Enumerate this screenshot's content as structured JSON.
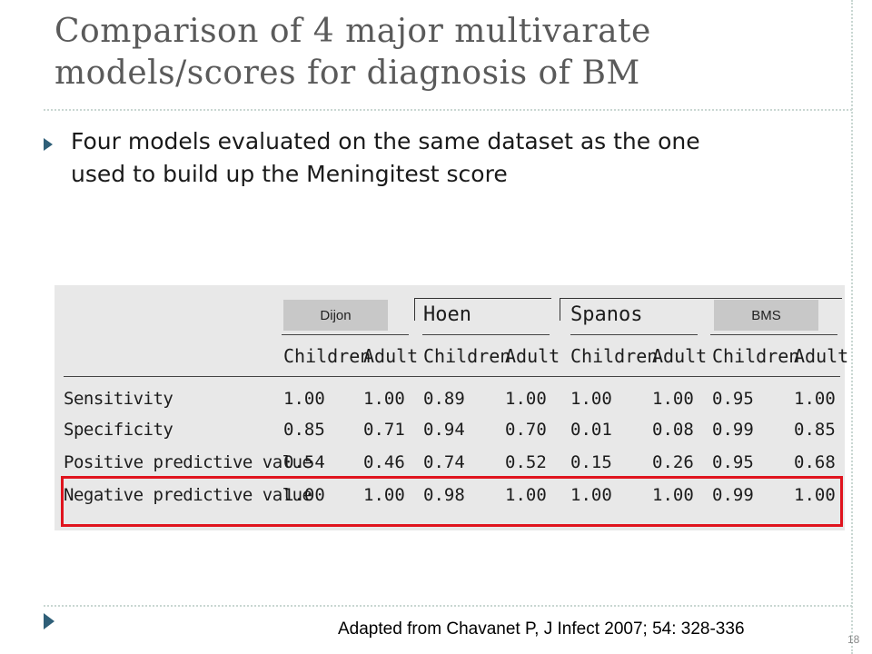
{
  "slide": {
    "title_line1": "Comparison of 4 major multivarate",
    "title_line2": "models/scores for diagnosis of BM",
    "bullet_line1": "Four models evaluated on the same dataset as the one",
    "bullet_line2": "used to build up the Meningitest score",
    "page_number": "18",
    "citation": "Adapted from Chavanet P, J Infect 2007; 54: 328-336"
  },
  "table": {
    "models": [
      "Dijon",
      "Hoen",
      "Spanos",
      "BMS"
    ],
    "subheaders": [
      "Children",
      "Adult"
    ],
    "rows": [
      {
        "label": "Sensitivity",
        "values": [
          "1.00",
          "1.00",
          "0.89",
          "1.00",
          "1.00",
          "1.00",
          "0.95",
          "1.00"
        ]
      },
      {
        "label": "Specificity",
        "values": [
          "0.85",
          "0.71",
          "0.94",
          "0.70",
          "0.01",
          "0.08",
          "0.99",
          "0.85"
        ]
      },
      {
        "label": "Positive predictive value",
        "values": [
          "0.54",
          "0.46",
          "0.74",
          "0.52",
          "0.15",
          "0.26",
          "0.95",
          "0.68"
        ]
      },
      {
        "label": "Negative predictive value",
        "values": [
          "1.00",
          "1.00",
          "0.98",
          "1.00",
          "1.00",
          "1.00",
          "0.99",
          "1.00"
        ]
      }
    ],
    "highlighted_row": "Negative predictive value",
    "highlight_color": "#e0141e"
  },
  "colors": {
    "title": "#5a5a5a",
    "bullet_arrow": "#2f5f78",
    "divider": "#c9d7d2"
  }
}
